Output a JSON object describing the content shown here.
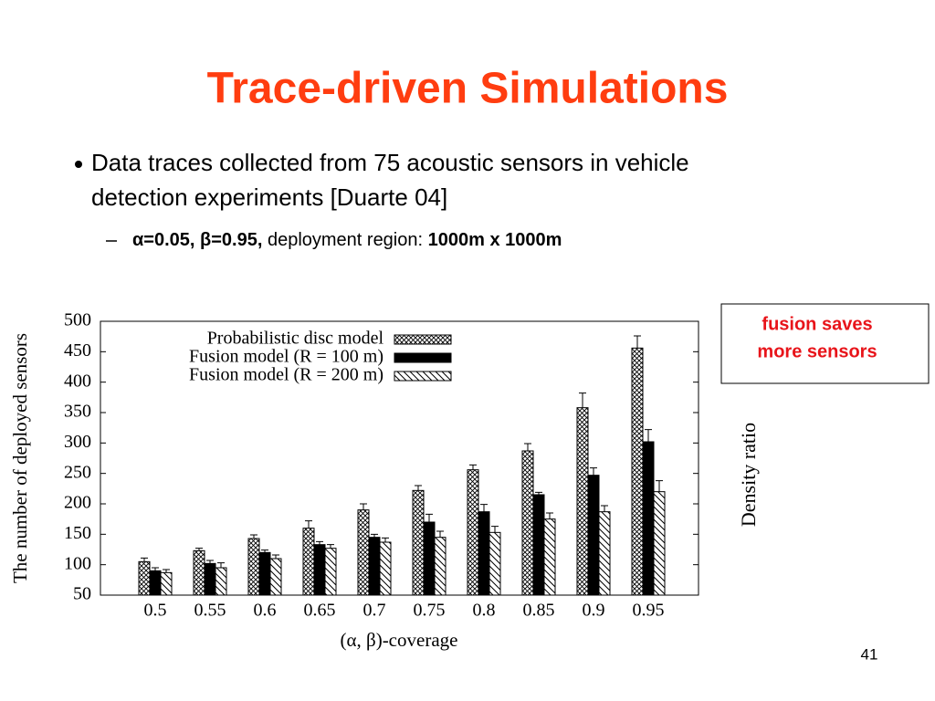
{
  "slide": {
    "title": "Trace-driven Simulations",
    "bullet_lines": [
      "Data traces collected from 75 acoustic sensors in vehicle",
      "detection experiments [Duarte 04]"
    ],
    "sub_bullet": {
      "params": "α=0.05, β=0.95,",
      "text": " deployment region: ",
      "region": "1000m x 1000m"
    },
    "callout": [
      "fusion saves",
      "more sensors"
    ],
    "side_chart_label": "Density ratio",
    "page_number": "41"
  },
  "chart_data": {
    "type": "bar",
    "ylabel": "The number of deployed sensors",
    "xlabel": "(α, β)-coverage",
    "categories": [
      "0.5",
      "0.55",
      "0.6",
      "0.65",
      "0.7",
      "0.75",
      "0.8",
      "0.85",
      "0.9",
      "0.95"
    ],
    "series": [
      {
        "name": "Probabilistic disc model",
        "color": "#000000",
        "pattern": "cross",
        "values": [
          105,
          123,
          143,
          160,
          190,
          222,
          256,
          287,
          358,
          456
        ],
        "errors": [
          6,
          4,
          6,
          12,
          10,
          8,
          8,
          12,
          24,
          20
        ]
      },
      {
        "name": "Fusion model (R = 100 m)",
        "color": "#000000",
        "pattern": "solid",
        "values": [
          90,
          102,
          120,
          133,
          145,
          170,
          187,
          215,
          247,
          302
        ],
        "errors": [
          5,
          5,
          4,
          5,
          5,
          13,
          12,
          4,
          12,
          20
        ]
      },
      {
        "name": "Fusion model (R = 200 m)",
        "color": "#000000",
        "pattern": "diagonal",
        "values": [
          87,
          95,
          110,
          127,
          137,
          145,
          153,
          175,
          187,
          220
        ],
        "errors": [
          5,
          8,
          6,
          6,
          7,
          10,
          10,
          10,
          10,
          18
        ]
      }
    ],
    "ylim": [
      50,
      500
    ],
    "yticks": [
      50,
      100,
      150,
      200,
      250,
      300,
      350,
      400,
      450,
      500
    ],
    "grid": false,
    "legend": "top-left"
  }
}
